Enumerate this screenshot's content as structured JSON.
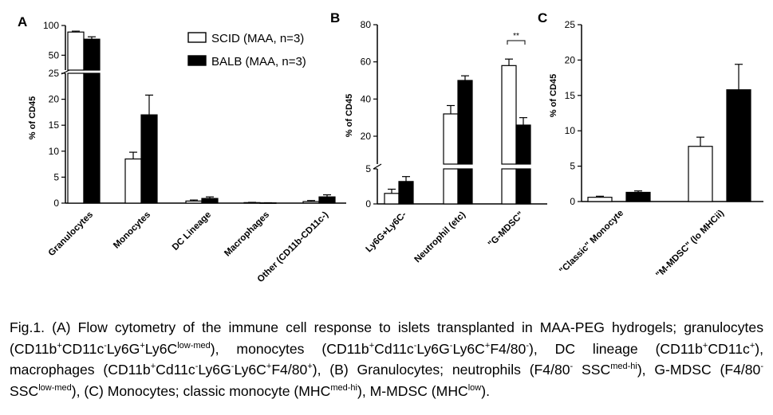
{
  "chart_data": [
    {
      "panel_label": "A",
      "type": "bar",
      "ylabel": "% of CD45",
      "categories": [
        "Granulocytes",
        "Monocytes",
        "DC Lineage",
        "Macrophages",
        "Other (CD11b-CD11c-)"
      ],
      "series": [
        {
          "name": "SCID (MAA, n=3)",
          "color": "#ffffff",
          "values": [
            89,
            8.5,
            0.4,
            0.1,
            0.3
          ],
          "errors": [
            1.5,
            1.3,
            0.2,
            0.05,
            0.2
          ]
        },
        {
          "name": "BALB (MAA, n=3)",
          "color": "#000000",
          "values": [
            77,
            17,
            0.9,
            0.05,
            1.2
          ],
          "errors": [
            4,
            3.8,
            0.3,
            0.03,
            0.4
          ]
        }
      ],
      "axis_break": {
        "lower": [
          0,
          25
        ],
        "upper": [
          25,
          100
        ]
      },
      "lower_ticks": [
        0,
        5,
        10,
        15,
        20,
        25
      ],
      "upper_ticks": [
        50,
        100
      ],
      "legend_position": "top-right"
    },
    {
      "panel_label": "B",
      "type": "bar",
      "ylabel": "% of CD45",
      "categories": [
        "Ly6G+Ly6C-",
        "Neutrophil (etc)",
        "\"G-MDSC\""
      ],
      "series": [
        {
          "name": "SCID (MAA, n=3)",
          "color": "#ffffff",
          "values": [
            1.5,
            32,
            58
          ],
          "errors": [
            0.6,
            4.5,
            3.5
          ]
        },
        {
          "name": "BALB (MAA, n=3)",
          "color": "#000000",
          "values": [
            3.2,
            50,
            26
          ],
          "errors": [
            0.7,
            2.5,
            4
          ]
        }
      ],
      "axis_break": {
        "lower": [
          0,
          5
        ],
        "upper": [
          5,
          80
        ]
      },
      "lower_ticks": [
        0,
        5
      ],
      "upper_ticks": [
        20,
        40,
        60,
        80
      ],
      "annotations": [
        {
          "text": "**",
          "between": [
            "SCID (MAA, n=3)",
            "BALB (MAA, n=3)"
          ],
          "category": "\"G-MDSC\""
        }
      ]
    },
    {
      "panel_label": "C",
      "type": "bar",
      "ylabel": "% of CD45",
      "categories": [
        "\"Classic\" Monocyte",
        "\"M-MDSC\" (lo MHCii)"
      ],
      "series": [
        {
          "name": "SCID (MAA, n=3)",
          "color": "#ffffff",
          "values": [
            0.6,
            7.8
          ],
          "errors": [
            0.15,
            1.3
          ]
        },
        {
          "name": "BALB (MAA, n=3)",
          "color": "#000000",
          "values": [
            1.3,
            15.8
          ],
          "errors": [
            0.2,
            3.6
          ]
        }
      ],
      "ylim": [
        0,
        25
      ],
      "ticks": [
        0,
        5,
        10,
        15,
        20,
        25
      ]
    }
  ],
  "caption": {
    "segments": [
      {
        "t": "Fig.1. (A) Flow cytometry of the immune cell response to islets transplanted in MAA-PEG hydrogels; granulocytes (CD11b"
      },
      {
        "t": "+",
        "sup": true
      },
      {
        "t": "CD11c"
      },
      {
        "t": "-",
        "sup": true
      },
      {
        "t": "Ly6G"
      },
      {
        "t": "+",
        "sup": true
      },
      {
        "t": "Ly6C"
      },
      {
        "t": "low-med",
        "sup": true
      },
      {
        "t": "), monocytes (CD11b"
      },
      {
        "t": "+",
        "sup": true
      },
      {
        "t": "Cd11c"
      },
      {
        "t": "-",
        "sup": true
      },
      {
        "t": "Ly6G"
      },
      {
        "t": "-",
        "sup": true
      },
      {
        "t": "Ly6C"
      },
      {
        "t": "+",
        "sup": true
      },
      {
        "t": "F4/80"
      },
      {
        "t": "-",
        "sup": true
      },
      {
        "t": "), DC lineage (CD11b"
      },
      {
        "t": "+",
        "sup": true
      },
      {
        "t": "CD11c"
      },
      {
        "t": "+",
        "sup": true
      },
      {
        "t": "), macrophages (CD11b"
      },
      {
        "t": "+",
        "sup": true
      },
      {
        "t": "Cd11c"
      },
      {
        "t": "-",
        "sup": true
      },
      {
        "t": "Ly6G"
      },
      {
        "t": "-",
        "sup": true
      },
      {
        "t": "Ly6C"
      },
      {
        "t": "+",
        "sup": true
      },
      {
        "t": "F4/80"
      },
      {
        "t": "+",
        "sup": true
      },
      {
        "t": "), (B) Granulocytes; neutrophils (F4/80"
      },
      {
        "t": "-",
        "sup": true
      },
      {
        "t": " SSC"
      },
      {
        "t": "med-hi",
        "sup": true
      },
      {
        "t": "), G-MDSC (F4/80"
      },
      {
        "t": "-",
        "sup": true
      },
      {
        "t": "SSC"
      },
      {
        "t": "low-med",
        "sup": true
      },
      {
        "t": "), (C) Monocytes; classic monocyte (MHC"
      },
      {
        "t": "med-hi",
        "sup": true
      },
      {
        "t": "), M-MDSC (MHC"
      },
      {
        "t": "low",
        "sup": true
      },
      {
        "t": ")."
      }
    ]
  }
}
